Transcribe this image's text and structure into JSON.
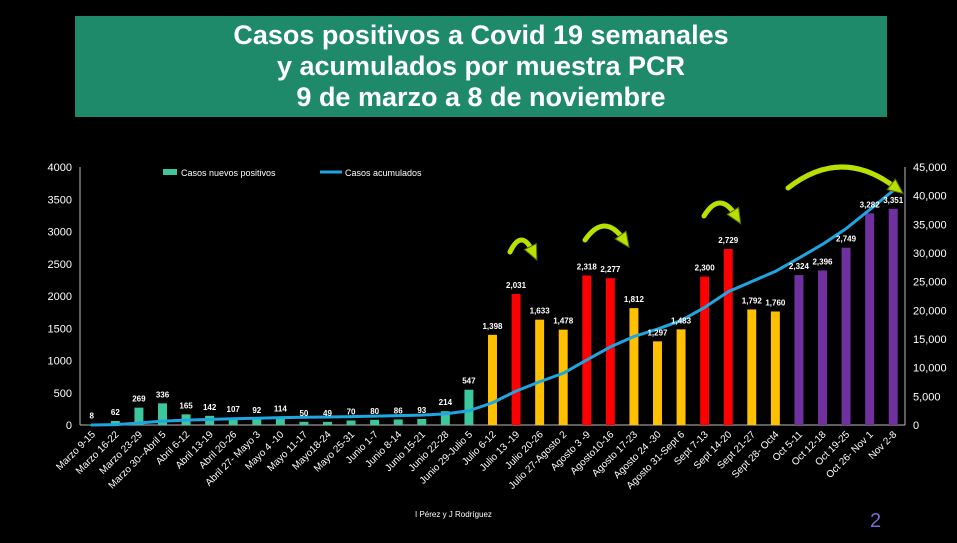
{
  "title_lines": [
    "Casos positivos a Covid 19 semanales",
    "y acumulados por muestra PCR",
    "9 de marzo a 8 de noviembre"
  ],
  "credit": "I Pérez y J Rodríguez",
  "page_number": "2",
  "colors": {
    "title_bg": "#1f8a6a",
    "green": "#3dc79c",
    "yellow": "#ffc000",
    "red": "#ff0000",
    "purple": "#7030a0",
    "line": "#1fa5e0",
    "arrow": "#b8e000"
  },
  "chart_data": {
    "type": "bar",
    "categories": [
      "Marzo 9-15",
      "Marzo 16-22",
      "Marzo 23-29",
      "Marzo 30--Abril 5",
      "Abril 6-12",
      "Abril 13-19",
      "Abril 20-26",
      "Abril 27- Mayo 3",
      "Mayo 4 -10",
      "Mayo 11-17",
      "Mayo18-24",
      "Mayo 25-31",
      "Junio 1-7",
      "Junio 8-14",
      "Junio 15-21",
      "Junio 22-28",
      "Junio 29-Julio 5",
      "Julio 6-12",
      "Julio 13 -19",
      "Julio 20-26",
      "Julio 27-Agosto 2",
      "Agosto 3 -9",
      "Agosto10-16",
      "Agosto 17-23",
      "Agosto 24 -30",
      "Agosto 31-Sept 6",
      "Sept 7-13",
      "Sept 14-20",
      "Sept 21-27",
      "Sept 28- Oct4",
      "Oct 5-11",
      "Oct 12-18",
      "Oct 19-25",
      "Oct 26- Nov 1",
      "Nov 2-8"
    ],
    "series": [
      {
        "name": "Casos nuevos positivos",
        "axis": "left",
        "values": [
          8,
          62,
          269,
          336,
          165,
          142,
          107,
          92,
          114,
          50,
          49,
          70,
          80,
          86,
          93,
          214,
          547,
          1398,
          2031,
          1633,
          1478,
          2318,
          2277,
          1812,
          1297,
          1483,
          2300,
          2729,
          1792,
          1760,
          2324,
          2396,
          2749,
          3282,
          3351
        ],
        "labels": [
          "8",
          "62",
          "269",
          "336",
          "165",
          "142",
          "107",
          "92",
          "114",
          "50",
          "49",
          "70",
          "80",
          "86",
          "93",
          "214",
          "547",
          "1,398",
          "2,031",
          "1,633",
          "1,478",
          "2,318",
          "2,277",
          "1,812",
          "1,297",
          "1,483",
          "2,300",
          "2,729",
          "1,792",
          "1,760",
          "2,324",
          "2,396",
          "2,749",
          "3,282",
          "3,351"
        ],
        "colors": [
          "green",
          "green",
          "green",
          "green",
          "green",
          "green",
          "green",
          "green",
          "green",
          "green",
          "green",
          "green",
          "green",
          "green",
          "green",
          "green",
          "green",
          "yellow",
          "red",
          "yellow",
          "yellow",
          "red",
          "red",
          "yellow",
          "yellow",
          "yellow",
          "red",
          "red",
          "yellow",
          "yellow",
          "purple",
          "purple",
          "purple",
          "purple",
          "purple"
        ]
      },
      {
        "name": "Casos acumulados",
        "axis": "right",
        "type": "line",
        "values": [
          8,
          70,
          339,
          675,
          840,
          982,
          1089,
          1181,
          1295,
          1345,
          1394,
          1464,
          1544,
          1630,
          1723,
          1937,
          2484,
          3882,
          5913,
          7546,
          9024,
          11342,
          13619,
          15431,
          16728,
          18211,
          20511,
          23240,
          25032,
          26792,
          29116,
          31512,
          34261,
          37543,
          40894
        ]
      }
    ],
    "ylim_left": [
      0,
      4000
    ],
    "yticks_left": [
      "0",
      "500",
      "1000",
      "1500",
      "2000",
      "2500",
      "3000",
      "3500",
      "4000"
    ],
    "ylim_right": [
      0,
      45000
    ],
    "yticks_right": [
      "0",
      "5,000",
      "10,000",
      "15,000",
      "20,000",
      "25,000",
      "30,000",
      "35,000",
      "40,000",
      "45,000"
    ],
    "legend_position": "top-left",
    "grid": false
  }
}
